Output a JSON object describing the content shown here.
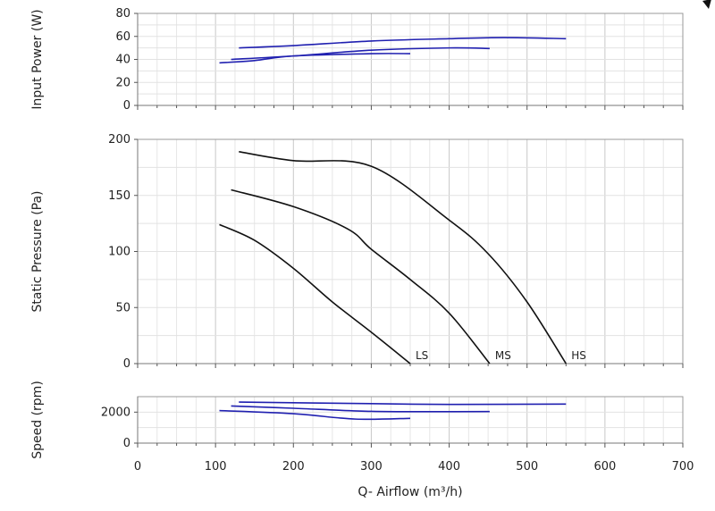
{
  "chart_data": [
    {
      "id": "power",
      "type": "line",
      "ylabel": "Input Power (W)",
      "xlim": [
        0,
        700
      ],
      "ylim": [
        0,
        80
      ],
      "yticks": [
        0,
        20,
        40,
        60,
        80
      ],
      "grid": true,
      "line_color": "#2020b0",
      "series": [
        {
          "x": [
            130,
            200,
            300,
            400,
            470,
            550
          ],
          "y": [
            50,
            52,
            56,
            58,
            59,
            58
          ]
        },
        {
          "x": [
            120,
            200,
            300,
            400,
            452
          ],
          "y": [
            40,
            43,
            48,
            50,
            49.5
          ]
        },
        {
          "x": [
            105,
            150,
            200,
            300,
            350
          ],
          "y": [
            37,
            39,
            43,
            45,
            45
          ]
        }
      ]
    },
    {
      "id": "pressure",
      "type": "line",
      "ylabel": "Static Pressure (Pa)",
      "xlim": [
        0,
        700
      ],
      "ylim": [
        0,
        200
      ],
      "yticks": [
        0,
        50,
        100,
        150,
        200
      ],
      "grid": true,
      "line_color": "#111111",
      "series": [
        {
          "name": "HS",
          "x": [
            130,
            200,
            300,
            400,
            450,
            500,
            550
          ],
          "y": [
            189,
            181,
            176,
            128,
            98,
            55,
            0
          ]
        },
        {
          "name": "MS",
          "x": [
            120,
            200,
            270,
            300,
            350,
            400,
            452
          ],
          "y": [
            155,
            140,
            120,
            102,
            75,
            45,
            0
          ]
        },
        {
          "name": "LS",
          "x": [
            105,
            150,
            200,
            250,
            300,
            350
          ],
          "y": [
            124,
            110,
            85,
            55,
            28,
            0
          ]
        }
      ]
    },
    {
      "id": "speed",
      "type": "line",
      "ylabel": "Speed (rpm)",
      "xlim": [
        0,
        700
      ],
      "ylim": [
        0,
        3000
      ],
      "yticks": [
        0,
        2000
      ],
      "grid": true,
      "line_color": "#2020b0",
      "series": [
        {
          "x": [
            130,
            300,
            400,
            550
          ],
          "y": [
            2650,
            2550,
            2500,
            2520
          ]
        },
        {
          "x": [
            120,
            200,
            300,
            400,
            452
          ],
          "y": [
            2400,
            2250,
            2050,
            2030,
            2040
          ]
        },
        {
          "x": [
            105,
            200,
            280,
            350
          ],
          "y": [
            2100,
            1900,
            1550,
            1600
          ]
        }
      ]
    }
  ],
  "xaxis": {
    "label": "Q- Airflow (m³/h)",
    "ticks": [
      0,
      100,
      200,
      300,
      400,
      500,
      600,
      700
    ]
  }
}
